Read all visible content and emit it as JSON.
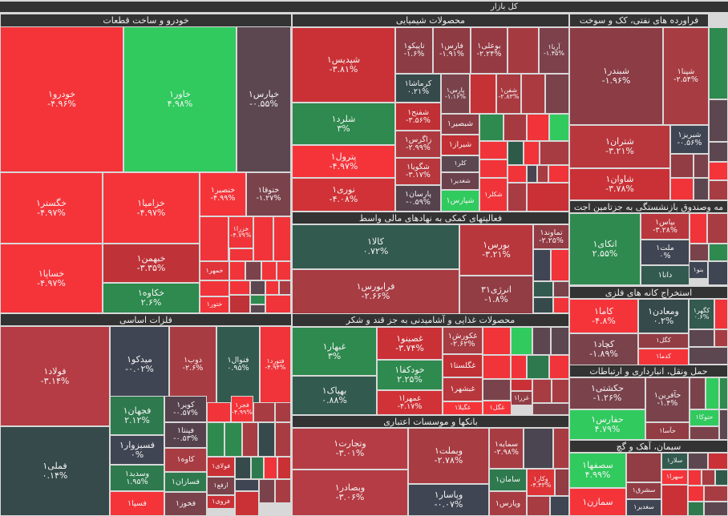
{
  "root_title": "کل بازار",
  "sectors": [
    {
      "title": "خودرو و ساخت قطعات",
      "tiles": [
        {
          "name": "خودرو۱",
          "change": "-۴.۹۶%",
          "color": "#f5343a"
        },
        {
          "name": "خاور۱",
          "change": "۴.۹۸%",
          "color": "#31ca5e"
        },
        {
          "name": "خپارس۱",
          "change": "-۰.۵۵%",
          "color": "#5c4750"
        },
        {
          "name": "خگستر۱",
          "change": "-۴.۹۷%",
          "color": "#f5343a"
        },
        {
          "name": "خساپا۱",
          "change": "-۴.۹۷%",
          "color": "#f5343a"
        },
        {
          "name": "خزامیا۱",
          "change": "-۴.۹۷%",
          "color": "#f5343a"
        },
        {
          "name": "خبهمن۱",
          "change": "-۳.۳۵%",
          "color": "#bf3237"
        },
        {
          "name": "خکاوه۱",
          "change": "۲.۶%",
          "color": "#2e8a4e"
        },
        {
          "name": "خنصیر۱",
          "change": "-۴.۹۹%",
          "color": "#f5343a"
        },
        {
          "name": "ختوقا۱",
          "change": "-۱.۲۷%",
          "color": "#7a434c"
        },
        {
          "name": "خزرا۱",
          "change": "-۴.۷۹%",
          "color": "#f0343a"
        },
        {
          "name": "خمهر۱",
          "change": "",
          "color": "#e0343a"
        },
        {
          "name": "ختور۱",
          "change": "",
          "color": "#f0343a"
        }
      ]
    },
    {
      "title": "محصولات شیمیایی",
      "tiles": [
        {
          "name": "شپدیس۱",
          "change": "-۳.۸۱%",
          "color": "#c93136"
        },
        {
          "name": "شلرد۱",
          "change": "۳%",
          "color": "#2e8a4e"
        },
        {
          "name": "پترول۱",
          "change": "-۴.۹۷%",
          "color": "#f5343a"
        },
        {
          "name": "نوری۱",
          "change": "-۴.۰۸%",
          "color": "#d03237"
        },
        {
          "name": "تاپیکو۱",
          "change": "-۱.۶%",
          "color": "#8b3c45"
        },
        {
          "name": "فارس۱",
          "change": "-۱.۹۱%",
          "color": "#8e3b44"
        },
        {
          "name": "بوعلی۱",
          "change": "-۲.۲۴%",
          "color": "#953a43"
        },
        {
          "name": "آریا۱",
          "change": "-۱.۴۵%",
          "color": "#7d414c"
        },
        {
          "name": "کرماشا۱",
          "change": "۰.۲۱%",
          "color": "#374a4b"
        },
        {
          "name": "شفنح۱",
          "change": "-۳.۵۶%",
          "color": "#c13034"
        },
        {
          "name": "زاگرس۱",
          "change": "-۲.۹۹%",
          "color": "#ad3a40"
        },
        {
          "name": "شگویا۱",
          "change": "-۳.۱۷%",
          "color": "#b8373d"
        },
        {
          "name": "پارسان۱",
          "change": "-۰.۵۹%",
          "color": "#55424c"
        },
        {
          "name": "پارس۱",
          "change": "-۱.۱۶%",
          "color": "#7a434c"
        },
        {
          "name": "شفن۱",
          "change": "-۲.۸۳%",
          "color": "#a93a40"
        },
        {
          "name": "شبصیر۱",
          "change": "",
          "color": "#8b3c45"
        },
        {
          "name": "شیراز۱",
          "change": "",
          "color": "#c13034"
        },
        {
          "name": "کلر۱",
          "change": "",
          "color": "#5c4750"
        },
        {
          "name": "شغدیر۱",
          "change": "",
          "color": "#6b414b"
        },
        {
          "name": "شپارس۱",
          "change": "",
          "color": "#31ca5e"
        },
        {
          "name": "شکلر۱",
          "change": "",
          "color": "#f0343a"
        }
      ]
    },
    {
      "title": "فراورده های نفتی، کک و سوخت",
      "tiles": [
        {
          "name": "شبندر۱",
          "change": "-۱.۹۶%",
          "color": "#8b3c45"
        },
        {
          "name": "شپنا۱",
          "change": "-۲.۵۴%",
          "color": "#a83c43"
        },
        {
          "name": "شتران۱",
          "change": "-۳.۲۱%",
          "color": "#b8373d"
        },
        {
          "name": "شاوان۱",
          "change": "-۳.۷۸%",
          "color": "#c93136"
        },
        {
          "name": "شبریز۱",
          "change": "-۰.۵۶%",
          "color": "#404553"
        }
      ]
    },
    {
      "title": "مه وصندوق بازنشستگی به جزتامین اجت",
      "tiles": [
        {
          "name": "اتکای۱",
          "change": "۲.۵۵%",
          "color": "#2e8a4e"
        },
        {
          "name": "بپاس۱",
          "change": "-۳.۲۸%",
          "color": "#b8373d"
        },
        {
          "name": "ملت۱",
          "change": "۰%",
          "color": "#404553"
        },
        {
          "name": "دانا۱",
          "change": "",
          "color": "#335a4f"
        },
        {
          "name": "بنو۱",
          "change": "",
          "color": "#404553"
        }
      ]
    },
    {
      "title": "فعالیتهای کمکی به نهادهای مالی واسط",
      "tiles": [
        {
          "name": "کالا۱",
          "change": "۰.۷۲%",
          "color": "#335a4f"
        },
        {
          "name": "فرابورس۱",
          "change": "-۲.۶۶%",
          "color": "#a83c43"
        },
        {
          "name": "بورس۱",
          "change": "-۳.۲۱%",
          "color": "#b8373d"
        },
        {
          "name": "انرژی۳۱",
          "change": "-۱.۸%",
          "color": "#923c44"
        },
        {
          "name": "تماوند۱",
          "change": "-۲.۲۵%",
          "color": "#923c44"
        }
      ]
    },
    {
      "title": "محصولات غذایی و آشامیدنی به جز قند و شکر",
      "tiles": [
        {
          "name": "غبهار۱",
          "change": "۳%",
          "color": "#2e8a4e"
        },
        {
          "name": "بهپاک۱",
          "change": "۰.۸۸%",
          "color": "#335a4f"
        },
        {
          "name": "غصینو۱",
          "change": "-۳.۷۴%",
          "color": "#c93136"
        },
        {
          "name": "خودکفا۱",
          "change": "۲.۲۵%",
          "color": "#2e8a4e"
        },
        {
          "name": "غمهرا۱",
          "change": "-۴.۱۷%",
          "color": "#d03237"
        },
        {
          "name": "غکورش۱",
          "change": "-۲.۶۲%",
          "color": "#a83c43"
        },
        {
          "name": "غگلستا۱",
          "change": "",
          "color": "#c13034"
        },
        {
          "name": "غبشهر۱",
          "change": "",
          "color": "#b8373d"
        },
        {
          "name": "غگیلا۱",
          "change": "",
          "color": "#f5343a"
        },
        {
          "name": "غگل۱",
          "change": "",
          "color": "#f5343a"
        },
        {
          "name": "غزرا۱",
          "change": "",
          "color": "#923c44"
        }
      ]
    },
    {
      "title": "بانکها و موسسات اعتباری",
      "tiles": [
        {
          "name": "وتجارت۱",
          "change": "-۳.۰۱%",
          "color": "#b53c44"
        },
        {
          "name": "وبصادر۱",
          "change": "-۳.۰۶%",
          "color": "#b53c44"
        },
        {
          "name": "وبملت۱",
          "change": "-۲.۷۸%",
          "color": "#a83c43"
        },
        {
          "name": "وپاسار۱",
          "change": "-۰.۰۷%",
          "color": "#404553"
        },
        {
          "name": "سمایه۱",
          "change": "-۲.۹۸%",
          "color": "#a83c43"
        },
        {
          "name": "سامان۱",
          "change": "",
          "color": "#2e7a4e"
        },
        {
          "name": "وکار۱",
          "change": "-۴.۴۳%",
          "color": "#de3438"
        },
        {
          "name": "وپارس۱",
          "change": "",
          "color": "#a83c43"
        }
      ]
    },
    {
      "title": "فلزات اساسی",
      "tiles": [
        {
          "name": "فولاد۱",
          "change": "-۳.۱۴%",
          "color": "#b53c44"
        },
        {
          "name": "فملی۱",
          "change": "۰.۱۴%",
          "color": "#374a4b"
        },
        {
          "name": "میدکو۱",
          "change": "-۰.۰۲%",
          "color": "#404553"
        },
        {
          "name": "ذوب۱",
          "change": "-۲.۶%",
          "color": "#a83c43"
        },
        {
          "name": "فنوال۱",
          "change": "۰.۹۵%",
          "color": "#335a4f"
        },
        {
          "name": "فتورد۱",
          "change": "-۴.۹۴%",
          "color": "#f0343a"
        },
        {
          "name": "فجهان۱",
          "change": "۲.۱۲%",
          "color": "#2e7a4e"
        },
        {
          "name": "فسبزوار۱",
          "change": "۰%",
          "color": "#404553"
        },
        {
          "name": "وسدید۱",
          "change": "۱.۹۵%",
          "color": "#2e7a4e"
        },
        {
          "name": "فسپا۱",
          "change": "",
          "color": "#f5343a"
        },
        {
          "name": "کویر۱",
          "change": "-۰.۵۷%",
          "color": "#55424c"
        },
        {
          "name": "فپنتا۱",
          "change": "-۰.۵۳%",
          "color": "#55424c"
        },
        {
          "name": "کاوه۱",
          "change": "",
          "color": "#a83c43"
        },
        {
          "name": "فسازان۱",
          "change": "",
          "color": "#2e7a4e"
        },
        {
          "name": "فخوز۱",
          "change": "",
          "color": "#7a434c"
        },
        {
          "name": "فجر۱",
          "change": "-۴.۹۹%",
          "color": "#f5343a"
        },
        {
          "name": "فولای۱",
          "change": "",
          "color": "#c93136"
        },
        {
          "name": "ارفع۱",
          "change": "",
          "color": "#7a434c"
        },
        {
          "name": "فروی۱",
          "change": "",
          "color": "#c93136"
        }
      ]
    },
    {
      "title": "استخراج کانه های فلزی",
      "tiles": [
        {
          "name": "کاما۱",
          "change": "-۴.۸%",
          "color": "#f5343a"
        },
        {
          "name": "کچاد۱",
          "change": "-۱.۸۹%",
          "color": "#7a434c"
        },
        {
          "name": "ومعادن۱",
          "change": "۰.۲%",
          "color": "#374a4b"
        },
        {
          "name": "کگل۱",
          "change": "",
          "color": "#923c44"
        },
        {
          "name": "کدما۱",
          "change": "",
          "color": "#f5343a"
        },
        {
          "name": "کگهر۱",
          "change": "۰.۶%",
          "color": "#335a4f"
        }
      ]
    },
    {
      "title": "حمل ونقل، انبارداری و ارتباطات",
      "tiles": [
        {
          "name": "حکشتی۱",
          "change": "-۱.۲۶%",
          "color": "#7a434c"
        },
        {
          "name": "حفارس۱",
          "change": "۴.۷۹%",
          "color": "#31ca5e"
        },
        {
          "name": "حآفرین۱",
          "change": "-۱.۴%",
          "color": "#7a434c"
        },
        {
          "name": "حآسا۱",
          "change": "",
          "color": "#923c44"
        },
        {
          "name": "حتوکا۱",
          "change": "",
          "color": "#31ca5e"
        }
      ]
    },
    {
      "title": "سیمان، آهک و گچ",
      "tiles": [
        {
          "name": "سصفها۱",
          "change": "۴.۹۹%",
          "color": "#31ca5e"
        },
        {
          "name": "سمازن۱",
          "change": "",
          "color": "#f5343a"
        },
        {
          "name": "سشرق۱",
          "change": "",
          "color": "#923c44"
        },
        {
          "name": "سغدیر۱",
          "change": "",
          "color": "#404553"
        },
        {
          "name": "سلار۱",
          "change": "",
          "color": "#335a4f"
        },
        {
          "name": "سهرا۱",
          "change": "",
          "color": "#f5343a"
        }
      ]
    }
  ]
}
